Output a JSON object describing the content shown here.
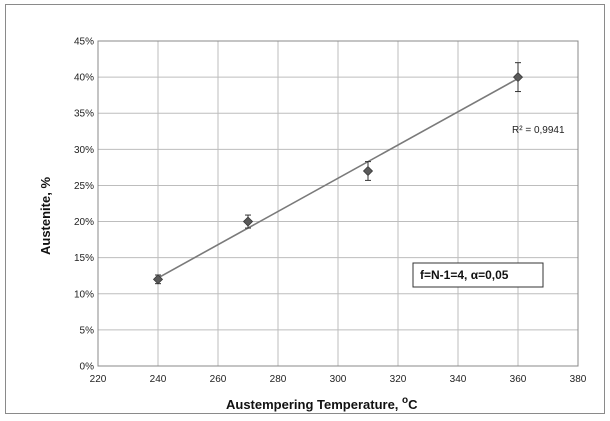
{
  "chart_data": {
    "type": "scatter",
    "title": "",
    "xlabel": "Austempering Temperature, ",
    "xlabel_sup": "o",
    "xlabel_unit": "C",
    "ylabel": "Austenite, %",
    "xlim": [
      220,
      380
    ],
    "ylim": [
      0,
      45
    ],
    "x_ticks": [
      220,
      240,
      260,
      280,
      300,
      320,
      340,
      360,
      380
    ],
    "y_ticks": [
      "0%",
      "5%",
      "10%",
      "15%",
      "20%",
      "25%",
      "30%",
      "35%",
      "40%",
      "45%"
    ],
    "y_tick_values": [
      0,
      5,
      10,
      15,
      20,
      25,
      30,
      35,
      40,
      45
    ],
    "grid": true,
    "series": [
      {
        "points": [
          {
            "x": 240,
            "y": 12,
            "err": 0.6
          },
          {
            "x": 270,
            "y": 20,
            "err": 0.9
          },
          {
            "x": 310,
            "y": 27,
            "err": 1.3
          },
          {
            "x": 360,
            "y": 40,
            "err": 2.0
          }
        ],
        "marker": "diamond",
        "color": "#5a5a5a"
      }
    ],
    "trendline": {
      "x": [
        240,
        360
      ],
      "y": [
        12.2,
        39.8
      ],
      "color": "#7a7a7a"
    },
    "annotations": {
      "r_squared": "R² = 0,9941",
      "stats_box": "f=N-1=4, α=0,05"
    }
  }
}
